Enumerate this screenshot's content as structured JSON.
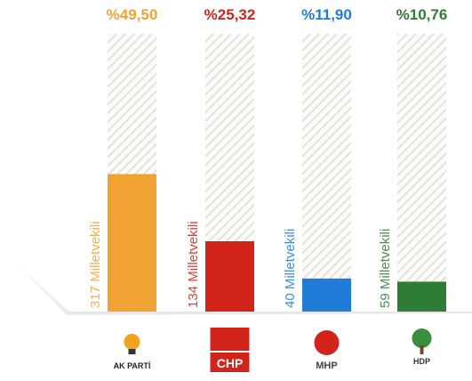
{
  "chart_data": {
    "type": "bar",
    "categories": [
      "AK PARTİ",
      "CHP",
      "MHP",
      "HDP"
    ],
    "values": [
      49.5,
      25.32,
      11.9,
      10.76
    ],
    "value_labels": [
      "%49,50",
      "%25,32",
      "%11,90",
      "%10,76"
    ],
    "seat_labels": [
      "317 Milletvekili",
      "134 Milletvekili",
      "40 Milletvekili",
      "59 Milletvekili"
    ],
    "colors": [
      "#f0a232",
      "#d3241c",
      "#1f7bd6",
      "#2f7d34"
    ],
    "ylim": [
      0,
      100
    ]
  }
}
